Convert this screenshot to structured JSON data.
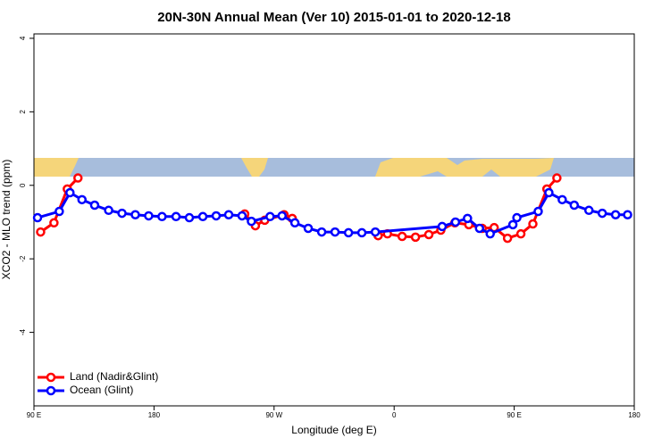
{
  "chart_data": {
    "type": "line",
    "title": "20N-30N Annual Mean (Ver 10)   2015-01-01 to 2020-12-18",
    "x_label": "Longitude (deg E)",
    "y_label": "XCO2 - MLO trend (ppm)",
    "xlim": [
      90,
      540
    ],
    "ylim": [
      -6.0,
      4.12
    ],
    "xticks": [
      {
        "value": 90,
        "label": "90 E"
      },
      180,
      {
        "value": 270,
        "label": "90 W"
      },
      {
        "value": 360,
        "label": "0"
      },
      {
        "value": 450,
        "label": "90 E"
      },
      {
        "value": 540,
        "label": "180"
      }
    ],
    "yticks": [
      -4,
      -2,
      0,
      2,
      4
    ],
    "legend": "bottom-left",
    "series": [
      {
        "name": "Land (Nadir&Glint)",
        "color": "#ff0000",
        "x": [
          95,
          105,
          115,
          123,
          null,
          248,
          256,
          263,
          277.5,
          283.6,
          null,
          348,
          355,
          366,
          376,
          386,
          395,
          405.5,
          416,
          426,
          435,
          445,
          455,
          464,
          474.5,
          482
        ],
        "values": [
          -1.27,
          -1.02,
          -0.1,
          0.2,
          null,
          -0.78,
          -1.1,
          -0.95,
          -0.8,
          -0.9,
          null,
          -1.37,
          -1.32,
          -1.39,
          -1.41,
          -1.34,
          -1.22,
          -1.02,
          -1.07,
          -1.17,
          -1.15,
          -1.44,
          -1.32,
          -1.05,
          -0.1,
          0.2
        ]
      },
      {
        "name": "Ocean (Glint)",
        "color": "#0000ff",
        "x": [
          92.7,
          109,
          117,
          126,
          135.5,
          146,
          156,
          166,
          176,
          186,
          196.5,
          206.5,
          216.6,
          226.6,
          236,
          246,
          253,
          267,
          276,
          285.6,
          295.6,
          305.7,
          315.7,
          325.8,
          335.8,
          345.9,
          396,
          406,
          415,
          424,
          432,
          449,
          452,
          468,
          476,
          486,
          495,
          506,
          516,
          526,
          535
        ],
        "values": [
          -0.88,
          -0.71,
          -0.2,
          -0.39,
          -0.54,
          -0.68,
          -0.76,
          -0.8,
          -0.83,
          -0.85,
          -0.85,
          -0.88,
          -0.85,
          -0.83,
          -0.8,
          -0.83,
          -0.98,
          -0.85,
          -0.83,
          -1.02,
          -1.17,
          -1.27,
          -1.27,
          -1.29,
          -1.29,
          -1.27,
          -1.12,
          -1.0,
          -0.9,
          -1.17,
          -1.32,
          -1.07,
          -0.88,
          -0.71,
          -0.2,
          -0.39,
          -0.54,
          -0.68,
          -0.76,
          -0.8,
          -0.8
        ]
      }
    ]
  }
}
